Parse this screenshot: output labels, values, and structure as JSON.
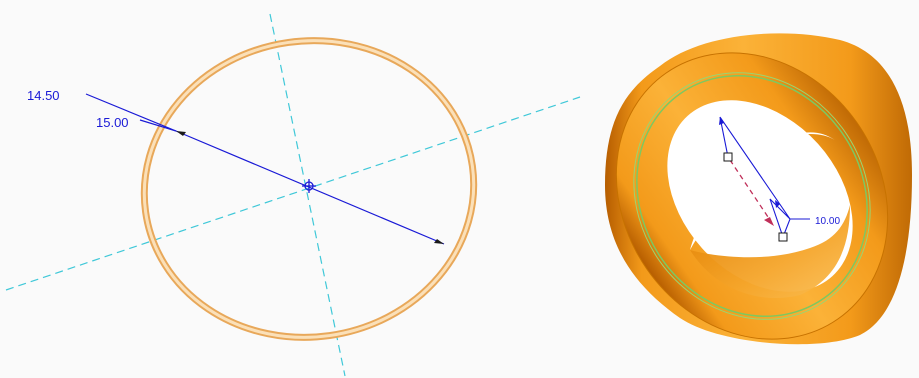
{
  "sketch_view": {
    "outer_diameter": "14.50",
    "inner_diameter": "15.00"
  },
  "model_view": {
    "thickness": "10.00"
  },
  "colors": {
    "background": "#fafafa",
    "ring_fill": "#f8d39a",
    "ring_edge": "#e8a85a",
    "centerline": "#3fc8d8",
    "dimension": "#1a1ad6",
    "cylinder_light": "#fbb238",
    "cylinder_mid": "#f39a1a",
    "cylinder_dark": "#b65d00",
    "highlight_ring": "#7ec860",
    "arrow_red": "#c0305a"
  }
}
